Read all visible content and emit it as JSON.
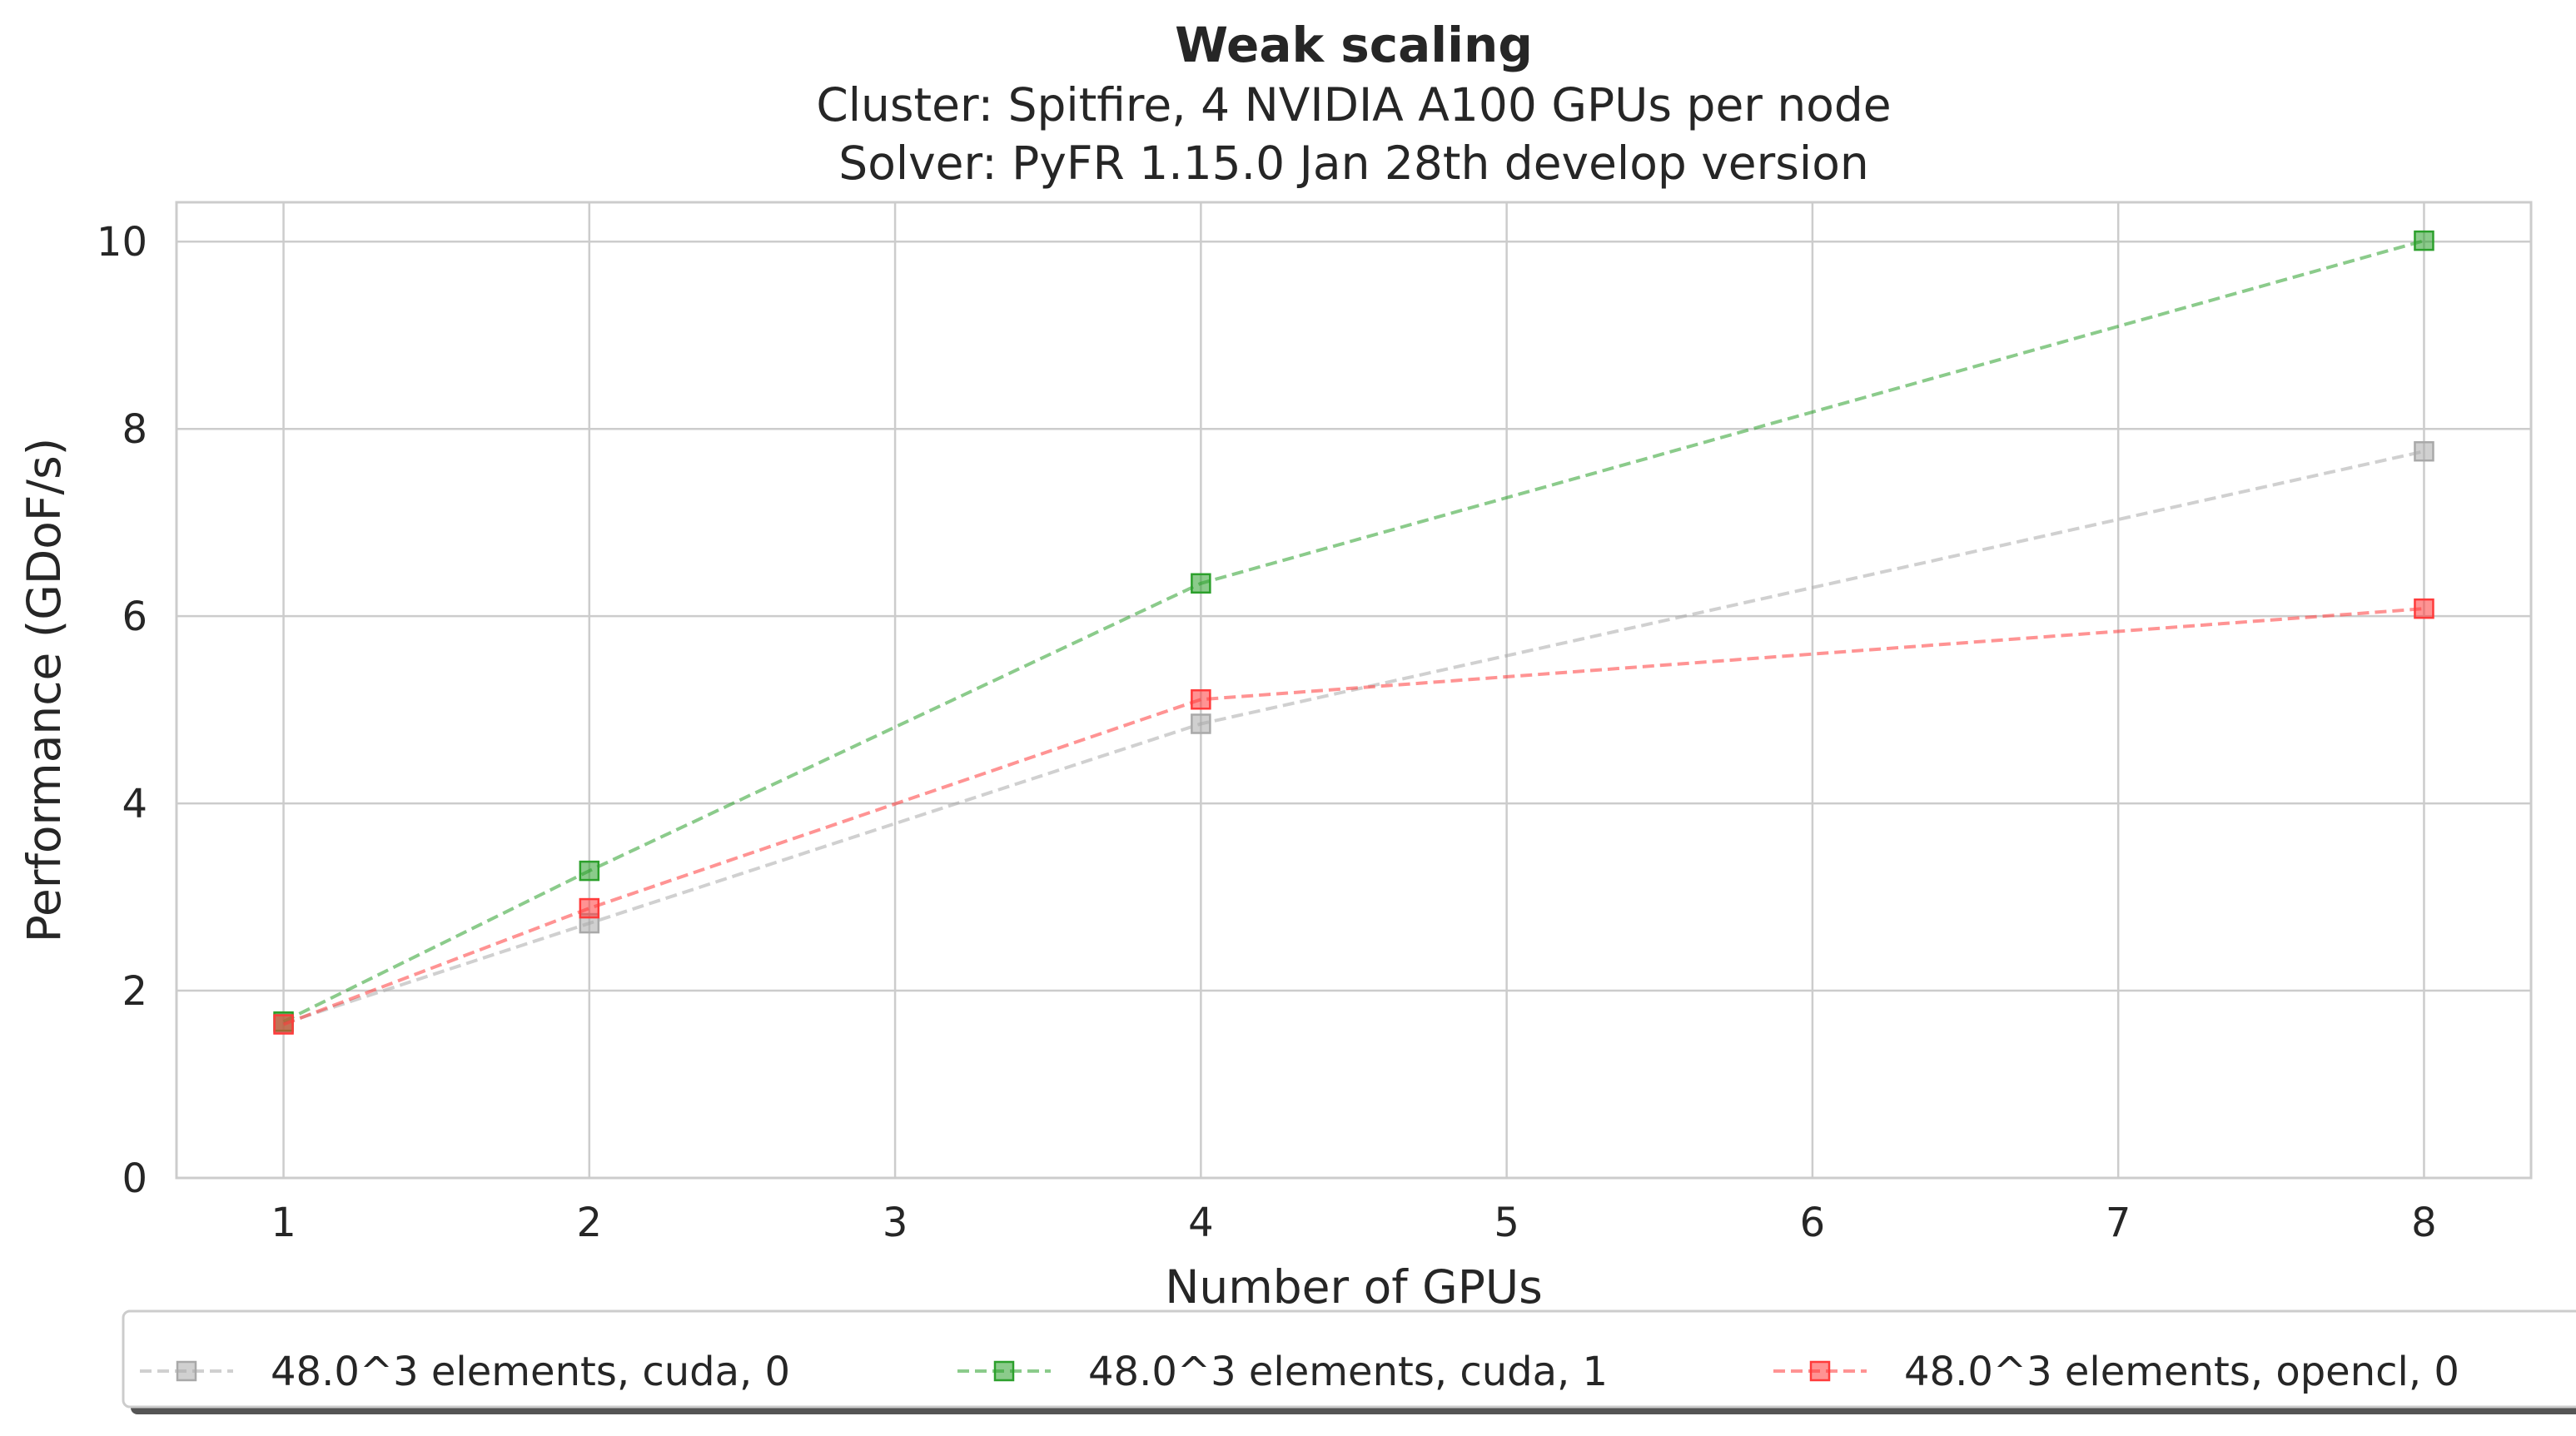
{
  "chart_data": {
    "type": "line",
    "title": "Weak scaling",
    "subtitle_lines": [
      "Cluster: Spitfire, 4 NVIDIA A100 GPUs per node",
      "Solver: PyFR 1.15.0 Jan 28th develop version"
    ],
    "xlabel": "Number of GPUs",
    "ylabel": "Performance (GDoF/s)",
    "xlim": [
      0.65,
      8.35
    ],
    "ylim": [
      0,
      10.42
    ],
    "xticks": [
      1,
      2,
      3,
      4,
      5,
      6,
      7,
      8
    ],
    "yticks": [
      0,
      2,
      4,
      6,
      8,
      10
    ],
    "grid": true,
    "legend_position": "bottom-center",
    "series": [
      {
        "name": "48.0^3 elements, cuda, 0",
        "color": "#a9a9a9",
        "marker": "square",
        "linestyle": "dashed",
        "x": [
          1,
          2,
          4,
          8
        ],
        "y": [
          1.65,
          2.72,
          4.85,
          7.76
        ]
      },
      {
        "name": "48.0^3 elements, cuda, 1",
        "color": "#2ca02c",
        "marker": "square",
        "linestyle": "dashed",
        "x": [
          1,
          2,
          4,
          8
        ],
        "y": [
          1.67,
          3.28,
          6.35,
          10.01
        ]
      },
      {
        "name": "48.0^3 elements, opencl, 0",
        "color": "#ff3b3b",
        "marker": "square",
        "linestyle": "dashed",
        "x": [
          1,
          2,
          4,
          8
        ],
        "y": [
          1.64,
          2.88,
          5.11,
          6.08
        ]
      }
    ]
  }
}
